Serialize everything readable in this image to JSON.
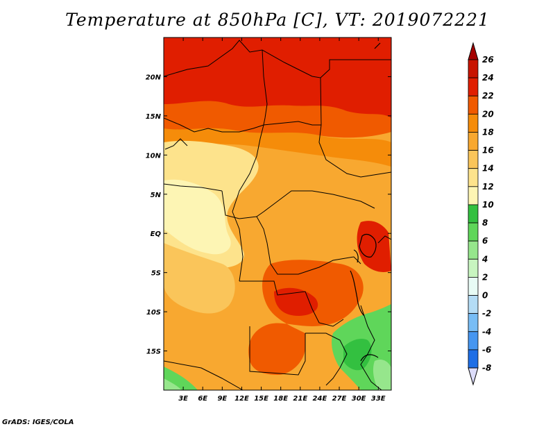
{
  "title": "Temperature at 850hPa [C], VT: 2019072221",
  "credit": "GrADS: IGES/COLA",
  "map": {
    "lon_range": [
      0,
      35
    ],
    "lat_range": [
      -20,
      25
    ],
    "lon_ticks": [
      {
        "value": 3,
        "label": "3E"
      },
      {
        "value": 6,
        "label": "6E"
      },
      {
        "value": 9,
        "label": "9E"
      },
      {
        "value": 12,
        "label": "12E"
      },
      {
        "value": 15,
        "label": "15E"
      },
      {
        "value": 18,
        "label": "18E"
      },
      {
        "value": 21,
        "label": "21E"
      },
      {
        "value": 24,
        "label": "24E"
      },
      {
        "value": 27,
        "label": "27E"
      },
      {
        "value": 30,
        "label": "30E"
      },
      {
        "value": 33,
        "label": "33E"
      }
    ],
    "lat_ticks": [
      {
        "value": 20,
        "label": "20N"
      },
      {
        "value": 15,
        "label": "15N"
      },
      {
        "value": 10,
        "label": "10N"
      },
      {
        "value": 5,
        "label": "5N"
      },
      {
        "value": 0,
        "label": "EQ"
      },
      {
        "value": -5,
        "label": "5S"
      },
      {
        "value": -10,
        "label": "10S"
      },
      {
        "value": -15,
        "label": "15S"
      }
    ]
  },
  "colorbar": {
    "levels": [
      {
        "label": "26",
        "color": "#a50000"
      },
      {
        "label": "24",
        "color": "#e01e00"
      },
      {
        "label": "22",
        "color": "#f05a00"
      },
      {
        "label": "20",
        "color": "#f58c0a"
      },
      {
        "label": "18",
        "color": "#f8a830"
      },
      {
        "label": "16",
        "color": "#fac55a"
      },
      {
        "label": "14",
        "color": "#fde38c"
      },
      {
        "label": "12",
        "color": "#fdf5b4"
      },
      {
        "label": "10",
        "color": "#33c040"
      },
      {
        "label": "8",
        "color": "#5fd65a"
      },
      {
        "label": "6",
        "color": "#96e68c"
      },
      {
        "label": "4",
        "color": "#c8f5c0"
      },
      {
        "label": "2",
        "color": "#e8fbf5"
      },
      {
        "label": "0",
        "color": "#b4dcf5"
      },
      {
        "label": "-2",
        "color": "#78bdf5"
      },
      {
        "label": "-4",
        "color": "#4696f0"
      },
      {
        "label": "-6",
        "color": "#1e6ee6"
      },
      {
        "label": "-8",
        "color": "#0a46c8"
      }
    ],
    "over_color": "#a50000",
    "under_color": "#dcdcfa",
    "bottom_extra_color": "#000a64"
  }
}
